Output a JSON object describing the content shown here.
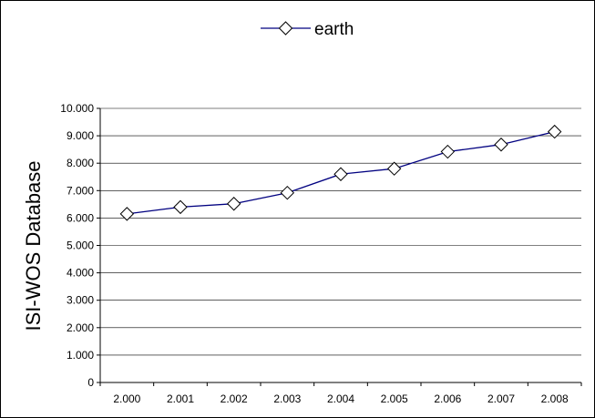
{
  "chart_data": {
    "type": "line",
    "categories": [
      "2.000",
      "2.001",
      "2.002",
      "2.003",
      "2.004",
      "2.005",
      "2.006",
      "2.007",
      "2.008"
    ],
    "series": [
      {
        "name": "earth",
        "values": [
          6150,
          6400,
          6520,
          6920,
          7600,
          7800,
          8420,
          8680,
          9150
        ],
        "color": "#000080",
        "marker": "diamond"
      }
    ],
    "ylabel": "ISI-WOS Database",
    "ylim": [
      0,
      10000
    ],
    "yticks": [
      0,
      1000,
      2000,
      3000,
      4000,
      5000,
      6000,
      7000,
      8000,
      9000,
      10000
    ],
    "ytick_labels": [
      "0",
      "1.000",
      "2.000",
      "3.000",
      "4.000",
      "5.000",
      "6.000",
      "7.000",
      "8.000",
      "9.000",
      "10.000"
    ],
    "grid": true,
    "legend": "top-center"
  }
}
